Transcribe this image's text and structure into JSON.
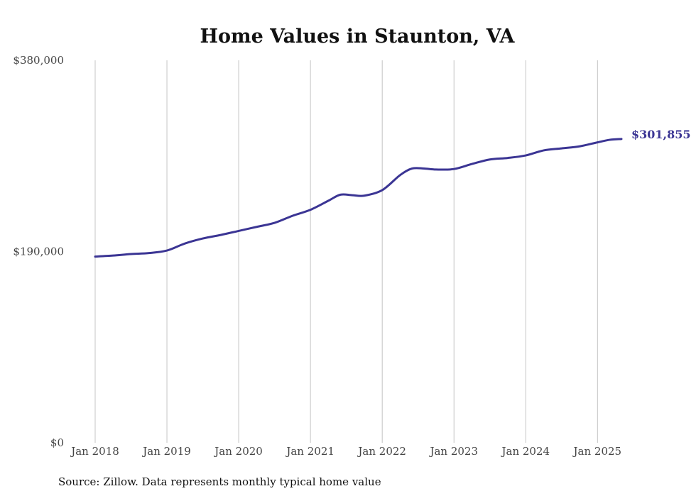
{
  "chart_data": {
    "type": "line",
    "title": "Home Values in Staunton, VA",
    "source_note": "Source: Zillow. Data represents monthly typical home value",
    "ylim": [
      0,
      380000
    ],
    "y_ticks": [
      {
        "value": 0,
        "label": "$0"
      },
      {
        "value": 190000,
        "label": "$190,000"
      },
      {
        "value": 380000,
        "label": "$380,000"
      }
    ],
    "xlim": [
      "2018-01",
      "2025-05"
    ],
    "x_ticks": [
      {
        "value": "2018-01",
        "label": "Jan 2018"
      },
      {
        "value": "2019-01",
        "label": "Jan 2019"
      },
      {
        "value": "2020-01",
        "label": "Jan 2020"
      },
      {
        "value": "2021-01",
        "label": "Jan 2021"
      },
      {
        "value": "2022-01",
        "label": "Jan 2022"
      },
      {
        "value": "2023-01",
        "label": "Jan 2023"
      },
      {
        "value": "2024-01",
        "label": "Jan 2024"
      },
      {
        "value": "2025-01",
        "label": "Jan 2025"
      }
    ],
    "grid": {
      "vertical": true,
      "horizontal": false
    },
    "line_color": "#3b3594",
    "end_label": "$301,855",
    "series": [
      {
        "points": [
          {
            "x": "2018-01",
            "y": 185000
          },
          {
            "x": "2018-04",
            "y": 186000
          },
          {
            "x": "2018-07",
            "y": 187500
          },
          {
            "x": "2018-10",
            "y": 188500
          },
          {
            "x": "2019-01",
            "y": 191000
          },
          {
            "x": "2019-04",
            "y": 198000
          },
          {
            "x": "2019-07",
            "y": 203000
          },
          {
            "x": "2019-10",
            "y": 206500
          },
          {
            "x": "2020-01",
            "y": 210500
          },
          {
            "x": "2020-04",
            "y": 214500
          },
          {
            "x": "2020-07",
            "y": 218500
          },
          {
            "x": "2020-10",
            "y": 225500
          },
          {
            "x": "2021-01",
            "y": 231500
          },
          {
            "x": "2021-04",
            "y": 240500
          },
          {
            "x": "2021-06",
            "y": 246500
          },
          {
            "x": "2021-08",
            "y": 246000
          },
          {
            "x": "2021-10",
            "y": 245500
          },
          {
            "x": "2022-01",
            "y": 251000
          },
          {
            "x": "2022-04",
            "y": 266000
          },
          {
            "x": "2022-06",
            "y": 272500
          },
          {
            "x": "2022-08",
            "y": 272500
          },
          {
            "x": "2022-10",
            "y": 271500
          },
          {
            "x": "2023-01",
            "y": 272000
          },
          {
            "x": "2023-04",
            "y": 277000
          },
          {
            "x": "2023-07",
            "y": 281500
          },
          {
            "x": "2023-10",
            "y": 283000
          },
          {
            "x": "2024-01",
            "y": 285500
          },
          {
            "x": "2024-04",
            "y": 290500
          },
          {
            "x": "2024-07",
            "y": 292500
          },
          {
            "x": "2024-10",
            "y": 294500
          },
          {
            "x": "2025-01",
            "y": 298500
          },
          {
            "x": "2025-03",
            "y": 301000
          },
          {
            "x": "2025-05",
            "y": 301855
          }
        ]
      }
    ]
  }
}
